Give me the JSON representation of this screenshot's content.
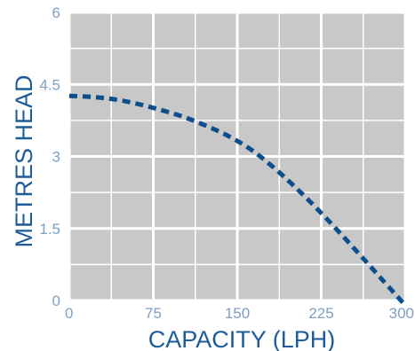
{
  "chart_data": {
    "type": "line",
    "xlabel": "CAPACITY (LPH)",
    "ylabel": "METRES HEAD",
    "xlim": [
      0,
      300
    ],
    "ylim": [
      0,
      6
    ],
    "x_ticks": [
      "0",
      "75",
      "150",
      "225",
      "300"
    ],
    "y_ticks": [
      "6",
      "4.5",
      "3",
      "1.5",
      "0"
    ],
    "grid": true,
    "series": [
      {
        "line_style": "dashed",
        "color": "#0d4f8c",
        "x": [
          0,
          20,
          40,
          60,
          80,
          100,
          120,
          140,
          160,
          180,
          200,
          220,
          240,
          260,
          280,
          300
        ],
        "y": [
          4.26,
          4.24,
          4.19,
          4.1,
          3.98,
          3.84,
          3.66,
          3.45,
          3.18,
          2.82,
          2.4,
          1.94,
          1.45,
          0.94,
          0.42,
          -0.1
        ]
      }
    ],
    "colors": {
      "plot_background": "#c8c8c9",
      "grid": "#ffffff",
      "tick_label": "#7da1c4",
      "axis_title": "#1d5c99"
    }
  }
}
